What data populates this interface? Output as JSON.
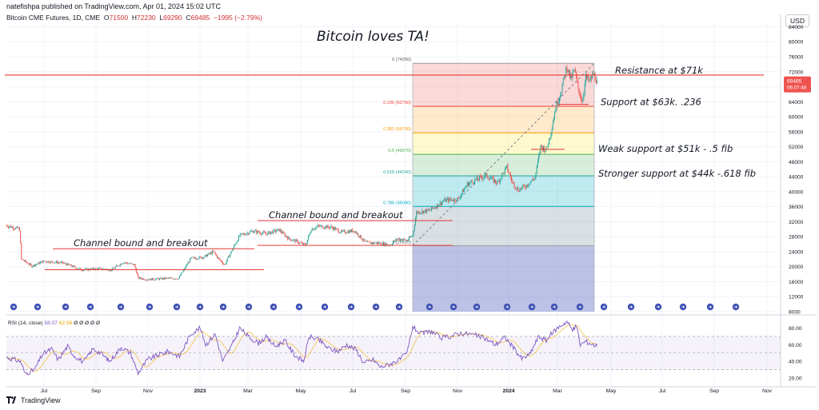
{
  "header": {
    "meta": "natefishpa published on TradingView.com, Apr 01, 2024 15:02 UTC",
    "symbol": "Bitcoin CME Futures, 1D, CME",
    "o_label": "O",
    "o_value": "71500",
    "h_label": "H",
    "h_value": "72230",
    "l_label": "L",
    "l_value": "69290",
    "c_label": "C",
    "c_value": "69485",
    "change": "−1995 (−2.79%)"
  },
  "currency_button": "USD",
  "footer": {
    "brand": "TradingView"
  },
  "colors": {
    "up": "#26a69a",
    "down": "#ef5350",
    "line": "#e53935",
    "rsi": "#7e57c2",
    "rsi_ma": "#f5c242"
  },
  "chart_data": [
    {
      "type": "candlestick",
      "title": "Bitcoin loves TA!",
      "x_ticks": [
        "Jul",
        "Sep",
        "Nov",
        "2023",
        "Mar",
        "May",
        "Jul",
        "Sep",
        "Nov",
        "2024",
        "Mar",
        "May",
        "Jul",
        "Sep",
        "Nov"
      ],
      "y_ticks": [
        8000,
        12000,
        16000,
        20000,
        24000,
        28000,
        32000,
        36000,
        40000,
        44000,
        48000,
        52000,
        56000,
        60000,
        64000,
        68000,
        72000,
        76000,
        80000,
        84000
      ],
      "ylim": [
        8000,
        86000
      ],
      "last_price": {
        "label": "69485",
        "countdown": "06:07:48",
        "value": 69485
      },
      "anchors": [
        [
          0,
          31000
        ],
        [
          14,
          30000
        ],
        [
          16,
          22000
        ],
        [
          27,
          20200
        ],
        [
          40,
          21500
        ],
        [
          60,
          21000
        ],
        [
          80,
          19200
        ],
        [
          98,
          19500
        ],
        [
          112,
          19200
        ],
        [
          124,
          21200
        ],
        [
          136,
          20500
        ],
        [
          140,
          17000
        ],
        [
          150,
          16600
        ],
        [
          172,
          16900
        ],
        [
          183,
          16900
        ],
        [
          196,
          22200
        ],
        [
          210,
          22600
        ],
        [
          220,
          24000
        ],
        [
          226,
          22000
        ],
        [
          232,
          20500
        ],
        [
          240,
          24500
        ],
        [
          248,
          28300
        ],
        [
          262,
          29500
        ],
        [
          276,
          28800
        ],
        [
          290,
          29800
        ],
        [
          300,
          27500
        ],
        [
          308,
          26800
        ],
        [
          318,
          25700
        ],
        [
          324,
          30000
        ],
        [
          332,
          30800
        ],
        [
          346,
          30500
        ],
        [
          356,
          29200
        ],
        [
          370,
          29600
        ],
        [
          382,
          26400
        ],
        [
          396,
          26300
        ],
        [
          408,
          25800
        ],
        [
          416,
          27500
        ],
        [
          426,
          27000
        ],
        [
          432,
          28400
        ],
        [
          436,
          34500
        ],
        [
          450,
          35000
        ],
        [
          466,
          37700
        ],
        [
          480,
          38000
        ],
        [
          490,
          42000
        ],
        [
          500,
          43300
        ],
        [
          510,
          44300
        ],
        [
          522,
          42400
        ],
        [
          532,
          46500
        ],
        [
          538,
          42500
        ],
        [
          544,
          40500
        ],
        [
          552,
          41500
        ],
        [
          562,
          43800
        ],
        [
          568,
          52000
        ],
        [
          574,
          51200
        ],
        [
          578,
          55000
        ],
        [
          584,
          62500
        ],
        [
          590,
          67200
        ],
        [
          596,
          73500
        ],
        [
          600,
          70000
        ],
        [
          604,
          72400
        ],
        [
          608,
          67500
        ],
        [
          612,
          64200
        ],
        [
          616,
          70500
        ],
        [
          620,
          69300
        ],
        [
          624,
          71500
        ],
        [
          628,
          69485
        ]
      ],
      "support_resistance": [
        {
          "label": "Resistance at $71k",
          "value": 71100
        },
        {
          "label": "Support at  $63k.  .236",
          "value": 63300
        },
        {
          "label": "Weak support at  $51k - .5 fib",
          "value": 51300
        },
        {
          "label": "Stronger support at $44k -.618 fib",
          "value": 44200
        }
      ],
      "channels": [
        {
          "label": "Channel bound and breakout",
          "upper": 24800,
          "lower": 19200
        },
        {
          "label": "Channel bound and breakout",
          "upper": 32300,
          "lower": 25700
        }
      ],
      "fibonacci": [
        {
          "level": "0",
          "price": 74250,
          "label": "0 (74250)",
          "fill": "rgba(239,83,80,0.22)",
          "line": "#9e9e9e"
        },
        {
          "level": "0.236",
          "price": 62790,
          "label": "0.236 (62790)",
          "fill": "rgba(255,152,0,0.20)",
          "line": "#f44336"
        },
        {
          "level": "0.382",
          "price": 55700,
          "label": "0.382 (55700)",
          "fill": "rgba(255,235,59,0.25)",
          "line": "#ff9800"
        },
        {
          "level": "0.5",
          "price": 49970,
          "label": "0.5 (49970)",
          "fill": "rgba(102,187,106,0.25)",
          "line": "#4caf50"
        },
        {
          "level": "0.618",
          "price": 44240,
          "label": "0.618 (44240)",
          "fill": "rgba(0,172,193,0.25)",
          "line": "#26a69a"
        },
        {
          "level": "0.786",
          "price": 36080,
          "label": "0.786 (36080)",
          "fill": "rgba(120,144,156,0.28)",
          "line": "#00acc1"
        },
        {
          "level": "1",
          "price": 25620,
          "label": "1 (25620)",
          "fill": "rgba(63,81,181,0.35)",
          "line": "#9e9e9e"
        }
      ],
      "fib_bottom_price": 8000
    },
    {
      "type": "line",
      "title": "RSI (14, close)",
      "legend": {
        "name": "RSI (14, close)",
        "rsi": "58.07",
        "ma": "62.56",
        "extra": "Ø  Ø     Ø  Ø  Ø"
      },
      "y_ticks": [
        20,
        40,
        60,
        80
      ],
      "y_tick_labels": [
        "20.00",
        "40.00",
        "60.00",
        "80.00"
      ],
      "ylim": [
        18,
        90
      ],
      "bands": [
        30,
        50,
        70
      ],
      "anchors": [
        [
          0,
          45
        ],
        [
          15,
          40
        ],
        [
          20,
          25
        ],
        [
          30,
          30
        ],
        [
          38,
          48
        ],
        [
          48,
          55
        ],
        [
          55,
          42
        ],
        [
          65,
          58
        ],
        [
          72,
          47
        ],
        [
          82,
          39
        ],
        [
          92,
          55
        ],
        [
          100,
          50
        ],
        [
          110,
          40
        ],
        [
          122,
          57
        ],
        [
          132,
          50
        ],
        [
          140,
          26
        ],
        [
          150,
          42
        ],
        [
          162,
          48
        ],
        [
          172,
          52
        ],
        [
          184,
          46
        ],
        [
          196,
          73
        ],
        [
          206,
          80
        ],
        [
          212,
          60
        ],
        [
          222,
          73
        ],
        [
          230,
          40
        ],
        [
          240,
          60
        ],
        [
          248,
          80
        ],
        [
          258,
          69
        ],
        [
          268,
          62
        ],
        [
          276,
          69
        ],
        [
          286,
          58
        ],
        [
          296,
          65
        ],
        [
          306,
          48
        ],
        [
          316,
          40
        ],
        [
          322,
          70
        ],
        [
          332,
          66
        ],
        [
          342,
          56
        ],
        [
          352,
          52
        ],
        [
          362,
          60
        ],
        [
          372,
          54
        ],
        [
          380,
          38
        ],
        [
          390,
          42
        ],
        [
          398,
          33
        ],
        [
          408,
          37
        ],
        [
          418,
          42
        ],
        [
          426,
          50
        ],
        [
          432,
          82
        ],
        [
          440,
          73
        ],
        [
          452,
          76
        ],
        [
          462,
          68
        ],
        [
          472,
          70
        ],
        [
          482,
          74
        ],
        [
          492,
          73
        ],
        [
          500,
          71
        ],
        [
          510,
          67
        ],
        [
          520,
          60
        ],
        [
          530,
          69
        ],
        [
          538,
          58
        ],
        [
          548,
          43
        ],
        [
          556,
          48
        ],
        [
          566,
          70
        ],
        [
          574,
          65
        ],
        [
          580,
          74
        ],
        [
          588,
          82
        ],
        [
          596,
          88
        ],
        [
          602,
          77
        ],
        [
          606,
          83
        ],
        [
          610,
          60
        ],
        [
          616,
          64
        ],
        [
          624,
          60
        ],
        [
          628,
          58
        ]
      ]
    }
  ]
}
